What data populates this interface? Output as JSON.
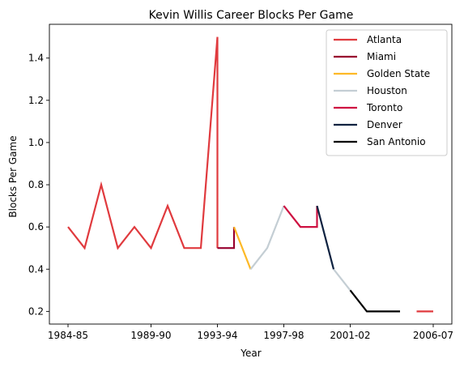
{
  "chart_data": {
    "type": "line",
    "title": "Kevin Willis Career Blocks Per Game",
    "xlabel": "Year",
    "ylabel": "Blocks Per Game",
    "seasons": [
      "1984-85",
      "1985-86",
      "1986-87",
      "1987-88",
      "1988-89",
      "1989-90",
      "1990-91",
      "1991-92",
      "1992-93",
      "1993-94",
      "1994-95",
      "1995-96",
      "1996-97",
      "1997-98",
      "1998-99",
      "1999-00",
      "2000-01",
      "2001-02",
      "2002-03",
      "2003-04",
      "2004-05",
      "2005-06",
      "2006-07"
    ],
    "x_ticks": [
      "1984-85",
      "1989-90",
      "1993-94",
      "1997-98",
      "2001-02",
      "2006-07"
    ],
    "y_ticks": [
      "0.2",
      "0.4",
      "0.6",
      "0.8",
      "1.0",
      "1.2",
      "1.4"
    ],
    "ylim": [
      0.14,
      1.56
    ],
    "grid": false,
    "legend_position": "top-right",
    "series": [
      {
        "name": "Atlanta",
        "color": "#e03a3e",
        "points": [
          [
            "1984-85",
            0.6
          ],
          [
            "1985-86",
            0.5
          ],
          [
            "1986-87",
            0.8
          ],
          [
            "1987-88",
            0.5
          ],
          [
            "1988-89",
            0.6
          ],
          [
            "1989-90",
            0.5
          ],
          [
            "1990-91",
            0.7
          ],
          [
            "1991-92",
            0.5
          ],
          [
            "1992-93",
            0.5
          ],
          [
            "1993-94",
            1.5
          ],
          [
            "1993-94",
            0.5
          ]
        ]
      },
      {
        "name": "Atlanta",
        "color": "#e03a3e",
        "points": [
          [
            "2005-06",
            0.2
          ],
          [
            "2006-07",
            0.2
          ]
        ],
        "legend": false
      },
      {
        "name": "Miami",
        "color": "#98002e",
        "points": [
          [
            "1993-94",
            0.5
          ],
          [
            "1994-95",
            0.5
          ],
          [
            "1994-95",
            0.6
          ]
        ]
      },
      {
        "name": "Golden State",
        "color": "#fdb927",
        "points": [
          [
            "1994-95",
            0.6
          ],
          [
            "1995-96",
            0.4
          ]
        ]
      },
      {
        "name": "Houston",
        "color": "#c4ced4",
        "points": [
          [
            "1995-96",
            0.4
          ],
          [
            "1996-97",
            0.5
          ],
          [
            "1997-98",
            0.7
          ]
        ]
      },
      {
        "name": "Houston",
        "color": "#c4ced4",
        "points": [
          [
            "2000-01",
            0.4
          ],
          [
            "2001-02",
            0.3
          ]
        ],
        "legend": false
      },
      {
        "name": "Toronto",
        "color": "#ce1141",
        "points": [
          [
            "1997-98",
            0.7
          ],
          [
            "1998-99",
            0.6
          ],
          [
            "1999-00",
            0.6
          ],
          [
            "1999-00",
            0.7
          ]
        ]
      },
      {
        "name": "Denver",
        "color": "#0e2240",
        "points": [
          [
            "1999-00",
            0.7
          ],
          [
            "2000-01",
            0.4
          ]
        ]
      },
      {
        "name": "San Antonio",
        "color": "#000000",
        "points": [
          [
            "2001-02",
            0.3
          ],
          [
            "2002-03",
            0.2
          ],
          [
            "2004-05",
            0.2
          ]
        ]
      }
    ]
  }
}
